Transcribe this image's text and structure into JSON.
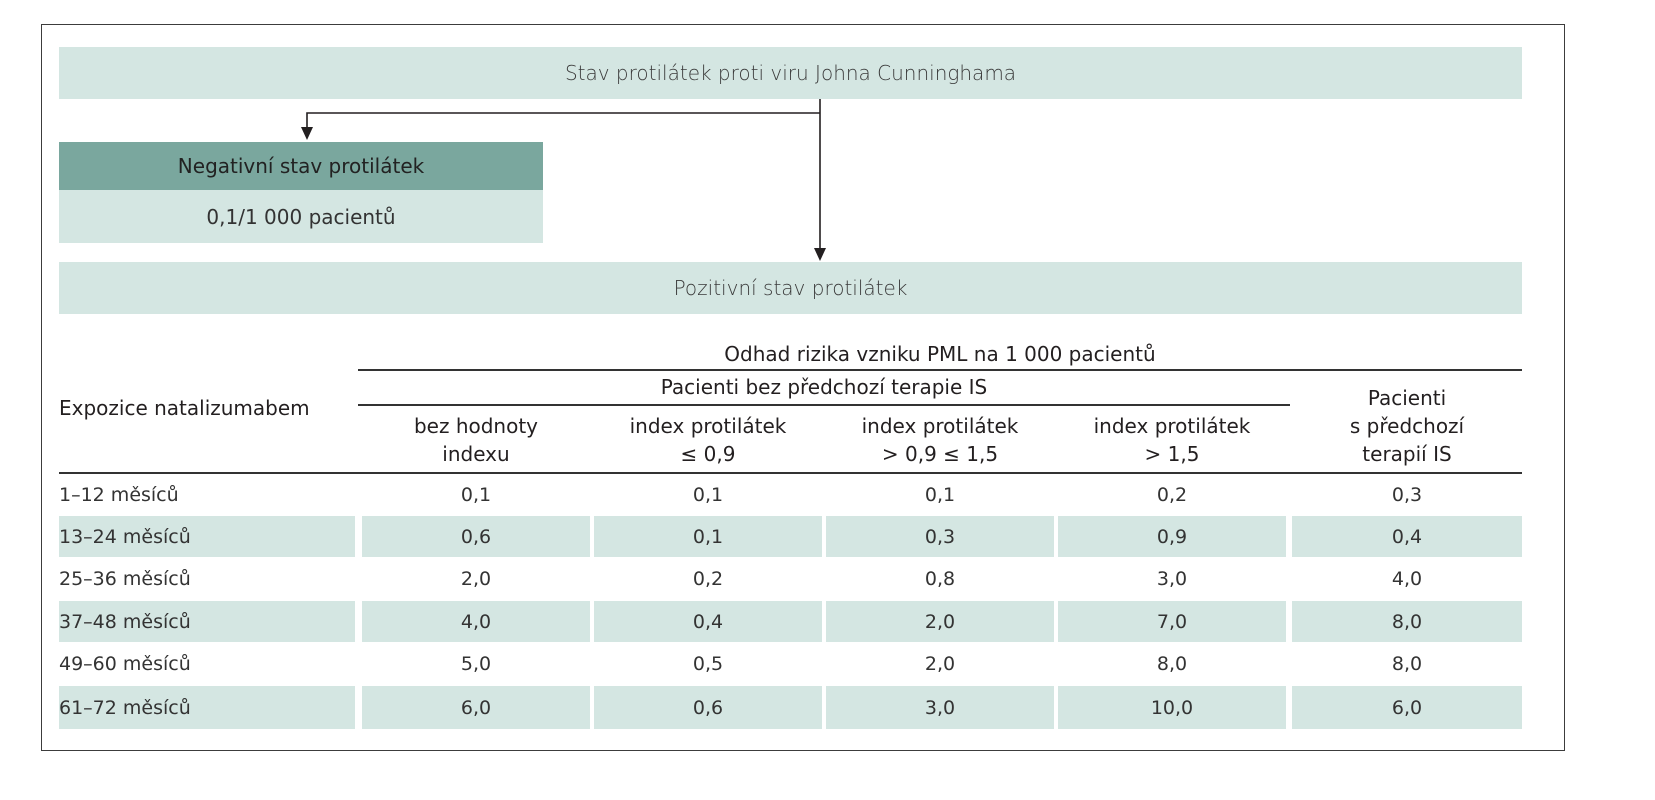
{
  "top_box": "Stav protilátek proti viru Johna Cunninghama",
  "negative": {
    "title": "Negativní stav protilátek",
    "value": "0,1/1 000 pacientů"
  },
  "positive": "Pozitivní stav protilátek",
  "table": {
    "row_header": "Expozice natalizumabem",
    "group_header": "Odhad rizika vzniku PML na 1 000 pacientů",
    "subgroup_header": "Pacienti bez předchozí terapie IS",
    "columns": [
      [
        "bez hodnoty",
        "indexu"
      ],
      [
        "index protilátek",
        "≤ 0,9"
      ],
      [
        "index protilátek",
        "> 0,9 ≤ 1,5"
      ],
      [
        "index protilátek",
        "> 1,5"
      ],
      [
        "Pacienti",
        "s předchozí",
        "terapií IS"
      ]
    ],
    "rows": [
      {
        "label": "1–12 měsíců",
        "values": [
          "0,1",
          "0,1",
          "0,1",
          "0,2",
          "0,3"
        ]
      },
      {
        "label": "13–24 měsíců",
        "values": [
          "0,6",
          "0,1",
          "0,3",
          "0,9",
          "0,4"
        ]
      },
      {
        "label": "25–36 měsíců",
        "values": [
          "2,0",
          "0,2",
          "0,8",
          "3,0",
          "4,0"
        ]
      },
      {
        "label": "37–48 měsíců",
        "values": [
          "4,0",
          "0,4",
          "2,0",
          "7,0",
          "8,0"
        ]
      },
      {
        "label": "49–60 měsíců",
        "values": [
          "5,0",
          "0,5",
          "2,0",
          "8,0",
          "8,0"
        ]
      },
      {
        "label": "61–72 měsíců",
        "values": [
          "6,0",
          "0,6",
          "3,0",
          "10,0",
          "6,0"
        ]
      }
    ]
  },
  "colors": {
    "light_band": "#d4e6e2",
    "dark_band": "#7aa79e",
    "line": "#333333"
  }
}
